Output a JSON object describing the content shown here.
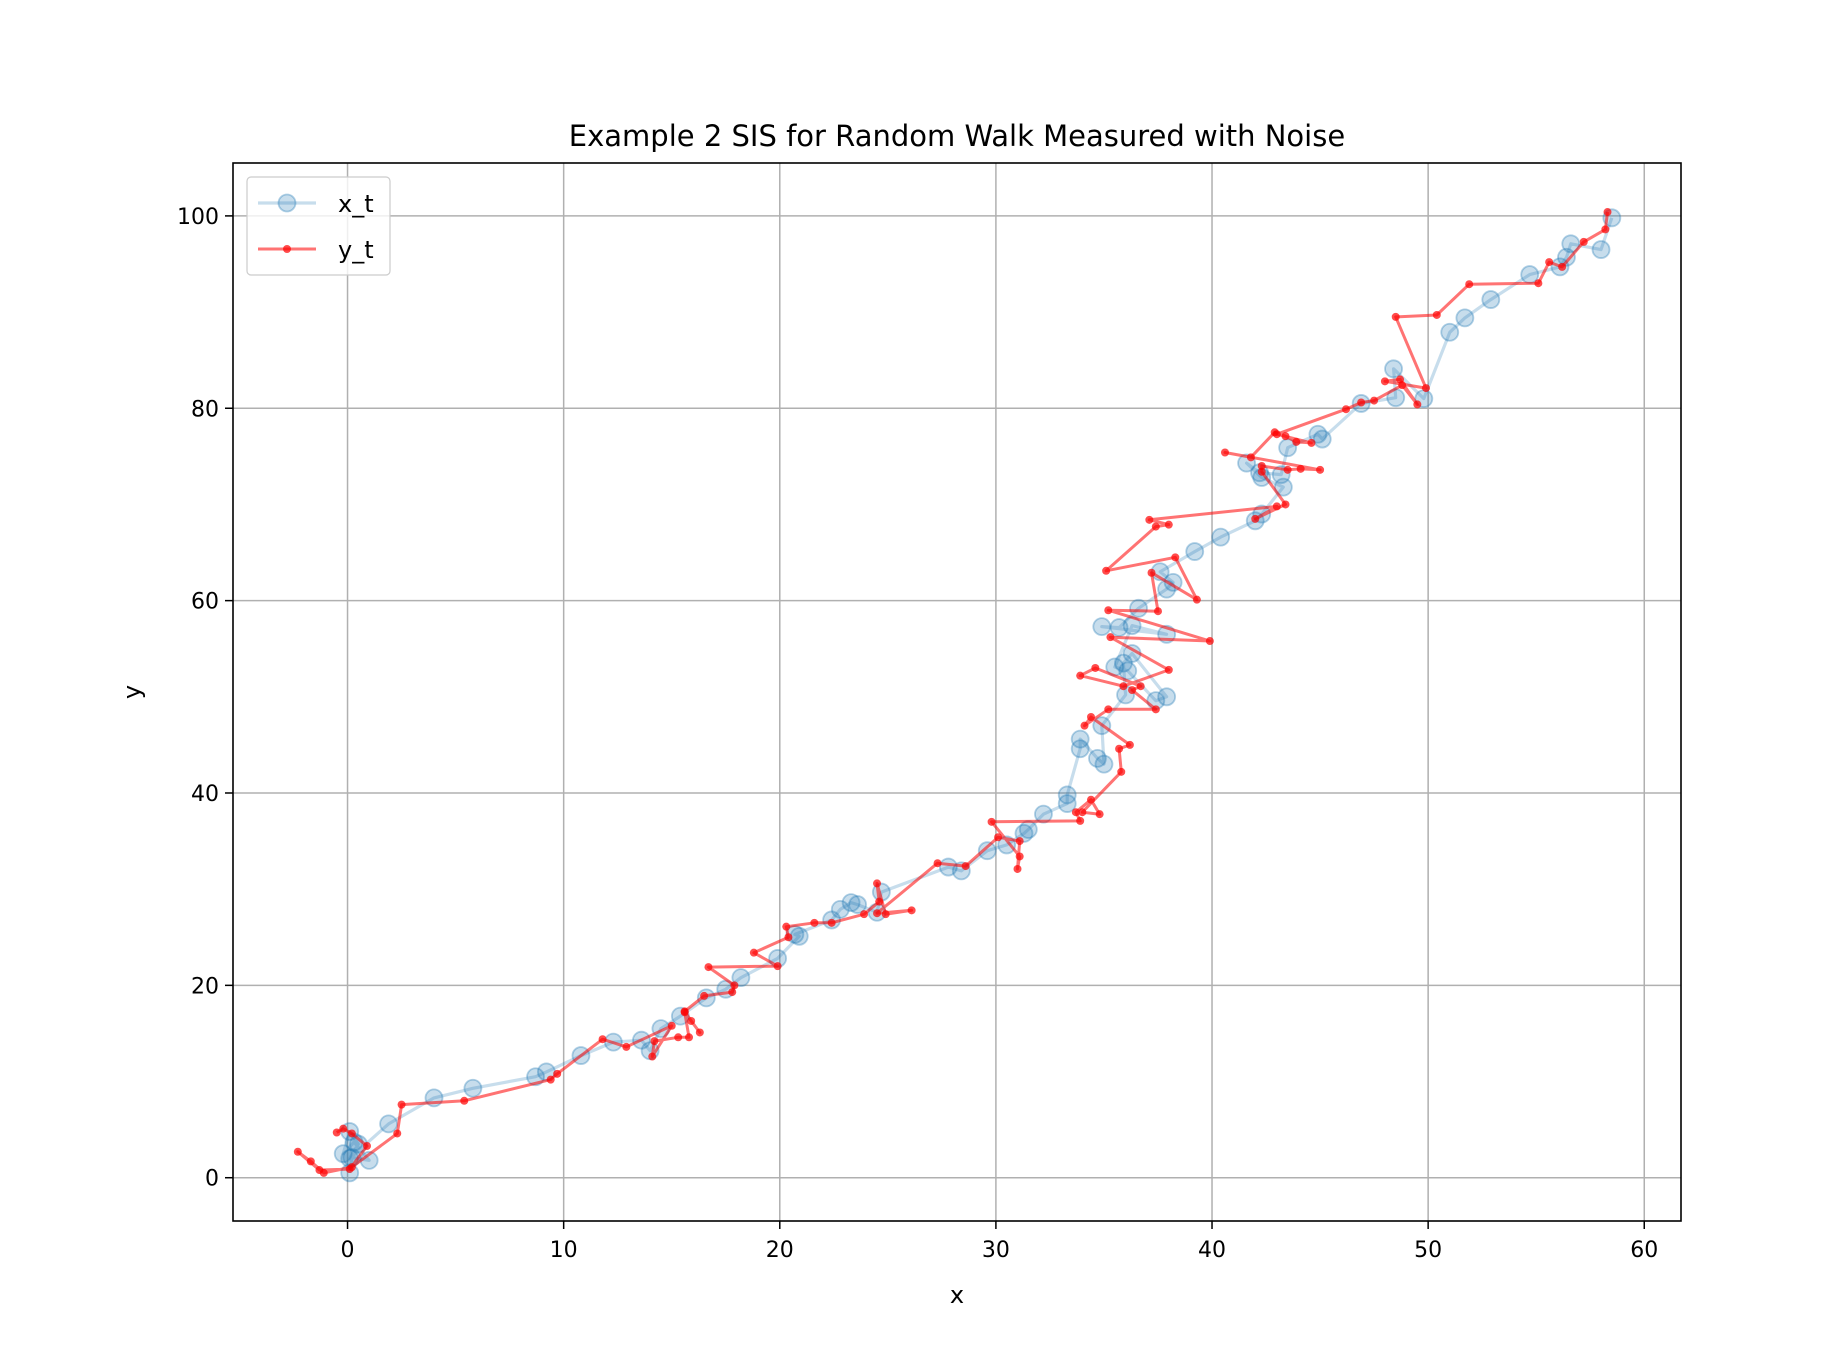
{
  "chart_data": {
    "type": "line",
    "title": "Example 2 SIS for Random Walk Measured with Noise",
    "xlabel": "x",
    "ylabel": "y",
    "xlim": [
      -5.3,
      61.7
    ],
    "ylim": [
      -4.5,
      105.5
    ],
    "xticks": [
      0,
      10,
      20,
      30,
      40,
      50,
      60
    ],
    "yticks": [
      0,
      20,
      40,
      60,
      80,
      100
    ],
    "grid": true,
    "legend": "top-left",
    "series": [
      {
        "name": "x_t",
        "color": "#1f77b4",
        "marker": "circle",
        "x": [
          0.1,
          0.2,
          1.0,
          0.3,
          -0.2,
          0.1,
          0.5,
          0.1,
          1.9,
          4.0,
          5.8,
          8.7,
          9.2,
          10.8,
          12.3,
          13.6,
          14.0,
          14.5,
          15.4,
          16.6,
          17.5,
          18.2,
          19.9,
          20.9,
          20.7,
          22.4,
          22.8,
          23.3,
          23.6,
          24.5,
          24.7,
          27.8,
          28.4,
          29.6,
          30.5,
          31.3,
          31.5,
          32.2,
          33.3,
          33.3,
          33.9,
          33.9,
          34.7,
          35.0,
          34.9,
          36.0,
          35.9,
          36.3,
          37.9,
          37.4,
          36.1,
          35.5,
          36.3,
          37.9,
          34.9,
          35.7,
          36.6,
          37.9,
          38.2,
          37.6,
          39.2,
          40.4,
          42.0,
          42.3,
          43.3,
          42.3,
          41.6,
          42.2,
          43.2,
          43.5,
          44.9,
          45.1,
          46.9,
          48.5,
          48.4,
          49.8,
          51.0,
          51.7,
          52.9,
          54.7,
          56.1,
          56.4,
          56.6,
          58.0,
          58.5
        ],
        "y": [
          0.5,
          2.1,
          1.8,
          3.7,
          2.5,
          4.8,
          3.5,
          2.0,
          5.6,
          8.3,
          9.3,
          10.5,
          11.0,
          12.7,
          14.1,
          14.3,
          13.2,
          15.5,
          16.8,
          18.7,
          19.6,
          20.8,
          22.8,
          25.1,
          25.3,
          26.8,
          27.9,
          28.6,
          28.4,
          27.6,
          29.7,
          32.3,
          31.9,
          34.0,
          34.6,
          35.8,
          36.2,
          37.8,
          38.9,
          39.8,
          44.6,
          45.6,
          43.6,
          43.0,
          47.0,
          50.2,
          53.5,
          54.5,
          50.0,
          49.6,
          52.7,
          53.1,
          57.4,
          56.5,
          57.3,
          57.2,
          59.2,
          61.2,
          61.9,
          63.0,
          65.1,
          66.6,
          68.3,
          69.0,
          71.8,
          72.8,
          74.3,
          73.3,
          73.1,
          75.9,
          77.3,
          76.8,
          80.5,
          81.1,
          84.1,
          81.0,
          87.9,
          89.4,
          91.3,
          93.9,
          94.7,
          95.7,
          97.1,
          96.5,
          99.8
        ]
      },
      {
        "name": "y_t",
        "color": "#ff0000",
        "marker": "dot",
        "x": [
          -0.5,
          -0.2,
          0.2,
          0.9,
          0.1,
          -1.3,
          -2.3,
          -1.7,
          -1.1,
          0.2,
          2.3,
          2.5,
          5.4,
          9.4,
          9.7,
          11.8,
          12.9,
          15.0,
          14.1,
          14.2,
          15.3,
          15.8,
          15.6,
          16.3,
          15.9,
          15.6,
          16.5,
          17.8,
          17.9,
          16.7,
          19.9,
          18.8,
          20.4,
          20.3,
          21.6,
          22.4,
          23.9,
          24.6,
          24.5,
          24.9,
          26.1,
          24.5,
          27.3,
          28.6,
          30.1,
          31.1,
          31.0,
          31.1,
          29.8,
          33.9,
          33.7,
          34.4,
          34.8,
          34.0,
          35.8,
          35.7,
          36.2,
          34.4,
          34.1,
          35.2,
          37.4,
          36.3,
          36.7,
          34.6,
          33.9,
          35.9,
          38.0,
          35.3,
          39.9,
          35.2,
          37.5,
          37.2,
          39.3,
          38.3,
          35.1,
          37.4,
          38.0,
          37.1,
          43.0,
          42.0,
          43.4,
          42.3,
          42.3,
          43.5,
          44.1,
          45.0,
          40.6,
          41.8,
          42.9,
          43.4,
          43.9,
          44.6,
          43.0,
          46.2,
          46.9,
          47.5,
          48.8,
          49.5,
          48.7,
          48.0,
          49.9,
          48.5,
          50.4,
          51.9,
          55.1,
          55.6,
          56.2,
          57.2,
          58.2,
          58.3
        ],
        "y": [
          4.7,
          5.1,
          4.6,
          3.3,
          0.9,
          0.8,
          2.7,
          1.7,
          0.5,
          1.1,
          4.6,
          7.6,
          8.0,
          10.2,
          10.8,
          14.4,
          13.6,
          15.8,
          12.6,
          14.2,
          14.6,
          14.6,
          17.2,
          15.1,
          16.3,
          17.3,
          18.9,
          19.3,
          20.0,
          21.9,
          22.0,
          23.4,
          25.0,
          26.1,
          26.5,
          26.5,
          27.4,
          28.7,
          30.6,
          27.4,
          27.8,
          27.5,
          32.7,
          32.4,
          35.4,
          35.0,
          32.1,
          33.4,
          37.0,
          37.1,
          38.0,
          39.3,
          37.8,
          38.0,
          42.2,
          44.6,
          45.0,
          47.9,
          47.0,
          48.7,
          48.7,
          50.7,
          51.1,
          53.0,
          52.2,
          51.1,
          52.8,
          56.2,
          55.8,
          59.0,
          58.9,
          62.9,
          60.1,
          64.5,
          63.1,
          67.7,
          67.9,
          68.4,
          69.8,
          68.5,
          70.0,
          73.4,
          74.0,
          73.6,
          73.7,
          73.6,
          75.4,
          74.9,
          77.5,
          77.1,
          76.5,
          76.4,
          77.3,
          79.9,
          80.6,
          80.8,
          82.4,
          80.4,
          83.0,
          82.8,
          82.1,
          89.5,
          89.7,
          92.9,
          93.0,
          95.2,
          94.7,
          97.3,
          98.6,
          100.4
        ]
      }
    ]
  }
}
